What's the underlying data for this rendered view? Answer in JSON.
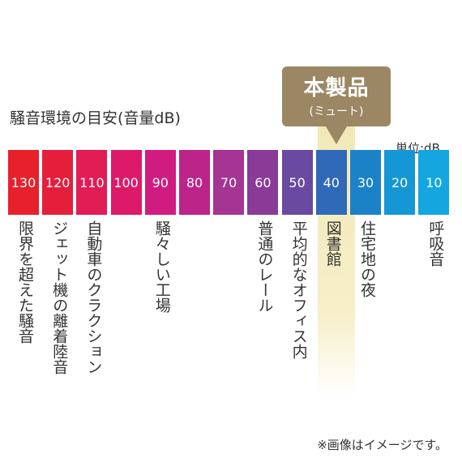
{
  "title": "騒音環境の目安(音量dB)",
  "product": {
    "label": "本製品",
    "mode": "(ミュート)"
  },
  "unit": "単位:dB",
  "bars": [
    {
      "value": "130",
      "label": "限界を超えた騒音",
      "color": "#e8202c"
    },
    {
      "value": "120",
      "label": "ジェット機の離着陸音",
      "color": "#e51e3c"
    },
    {
      "value": "110",
      "label": "自動車のクラクション",
      "color": "#e21c55"
    },
    {
      "value": "100",
      "label": "",
      "color": "#dd1a6a"
    },
    {
      "value": "90",
      "label": "騒々しい工場",
      "color": "#d01c80"
    },
    {
      "value": "80",
      "label": "",
      "color": "#bc2489"
    },
    {
      "value": "70",
      "label": "",
      "color": "#a53492"
    },
    {
      "value": "60",
      "label": "普通のレール",
      "color": "#8a3b98"
    },
    {
      "value": "50",
      "label": "平均的なオフィス内",
      "color": "#6a4aa0"
    },
    {
      "value": "40",
      "label": "図書館",
      "color": "#2f69b8"
    },
    {
      "value": "30",
      "label": "住宅地の夜",
      "color": "#1b82c8"
    },
    {
      "value": "20",
      "label": "",
      "color": "#1596d5"
    },
    {
      "value": "10",
      "label": "呼吸音",
      "color": "#13a6e0"
    }
  ],
  "note": "※画像はイメージです。"
}
